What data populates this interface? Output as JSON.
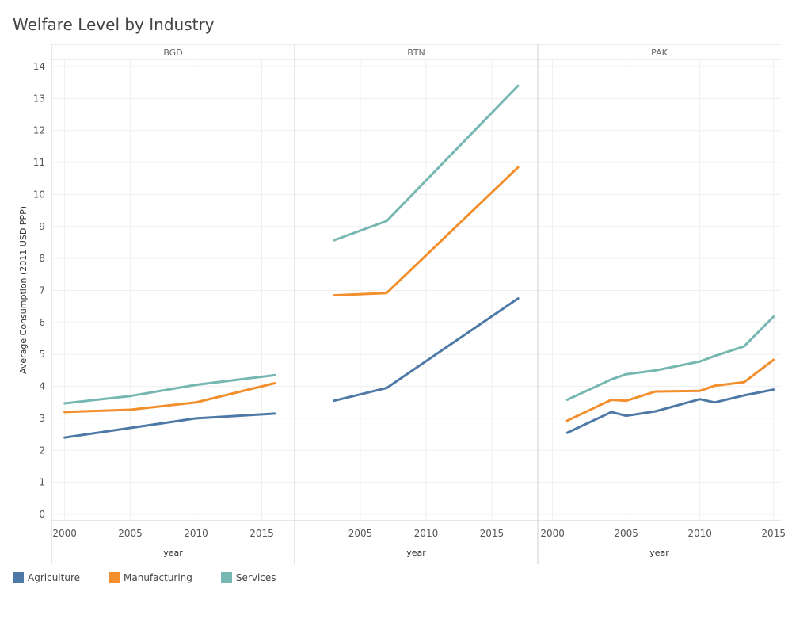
{
  "title": "Welfare Level by Industry",
  "chart_data": {
    "type": "line",
    "title": "Welfare Level by Industry",
    "ylabel": "Average Consumption (2011 USD PPP)",
    "xlabel": "year",
    "ylim": [
      0,
      14
    ],
    "yticks": [
      0,
      1,
      2,
      3,
      4,
      5,
      6,
      7,
      8,
      9,
      10,
      11,
      12,
      13,
      14
    ],
    "grid": true,
    "legend_position": "bottom-left",
    "series_colors": {
      "Agriculture": "#4e79a7",
      "Manufacturing": "#f28e2b",
      "Services": "#76b7b2"
    },
    "legend": [
      "Agriculture",
      "Manufacturing",
      "Services"
    ],
    "panels": [
      {
        "name": "BGD",
        "xlim": [
          1999,
          2017.5
        ],
        "xticks": [
          "2000",
          "2005",
          "2010",
          "2015"
        ],
        "series": [
          {
            "name": "Agriculture",
            "x": [
              2000,
              2005,
              2010,
              2016
            ],
            "y": [
              2.4,
              2.7,
              3.0,
              3.15
            ]
          },
          {
            "name": "Manufacturing",
            "x": [
              2000,
              2005,
              2010,
              2016
            ],
            "y": [
              3.2,
              3.27,
              3.5,
              4.1
            ]
          },
          {
            "name": "Services",
            "x": [
              2000,
              2005,
              2010,
              2016
            ],
            "y": [
              3.47,
              3.7,
              4.05,
              4.35
            ]
          }
        ]
      },
      {
        "name": "BTN",
        "xlim": [
          2000,
          2018.5
        ],
        "xticks": [
          "2005",
          "2010",
          "2015"
        ],
        "series": [
          {
            "name": "Agriculture",
            "x": [
              2003,
              2007,
              2017
            ],
            "y": [
              3.55,
              3.95,
              6.75
            ]
          },
          {
            "name": "Manufacturing",
            "x": [
              2003,
              2007,
              2017
            ],
            "y": [
              6.85,
              6.92,
              10.85
            ]
          },
          {
            "name": "Services",
            "x": [
              2003,
              2007,
              2017
            ],
            "y": [
              8.57,
              9.17,
              13.4
            ]
          }
        ]
      },
      {
        "name": "PAK",
        "xlim": [
          1999,
          2015.5
        ],
        "xticks": [
          "2000",
          "2005",
          "2010",
          "2015"
        ],
        "series": [
          {
            "name": "Agriculture",
            "x": [
              2001,
              2004,
              2005,
              2007,
              2010,
              2011,
              2013,
              2015
            ],
            "y": [
              2.55,
              3.2,
              3.08,
              3.22,
              3.6,
              3.5,
              3.72,
              3.9
            ]
          },
          {
            "name": "Manufacturing",
            "x": [
              2001,
              2004,
              2005,
              2007,
              2010,
              2011,
              2013,
              2015
            ],
            "y": [
              2.93,
              3.58,
              3.55,
              3.84,
              3.86,
              4.02,
              4.13,
              4.83
            ]
          },
          {
            "name": "Services",
            "x": [
              2001,
              2004,
              2005,
              2007,
              2010,
              2011,
              2013,
              2015
            ],
            "y": [
              3.58,
              4.22,
              4.38,
              4.5,
              4.78,
              4.95,
              5.25,
              6.18
            ]
          }
        ]
      }
    ]
  }
}
